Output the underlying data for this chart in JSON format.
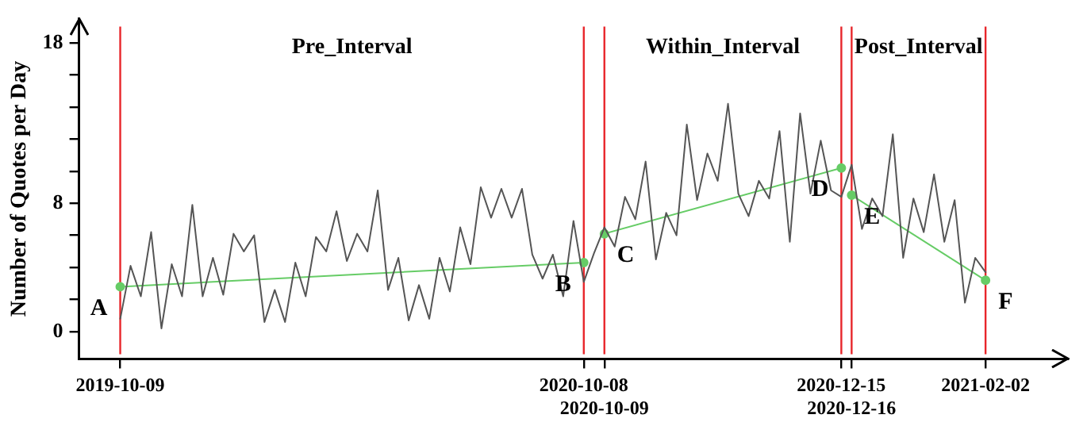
{
  "chart_data": {
    "type": "line",
    "ylabel": "Number of Quotes per Day",
    "categories": [
      null,
      null,
      null,
      null,
      "2019-10-09",
      null,
      null,
      null,
      null,
      null,
      null,
      null,
      null,
      null,
      null,
      null,
      null,
      null,
      null,
      null,
      null,
      null,
      null,
      null,
      null,
      null,
      null,
      null,
      null,
      null,
      null,
      null,
      null,
      null,
      null,
      null,
      null,
      null,
      null,
      null,
      null,
      null,
      null,
      null,
      null,
      null,
      null,
      null,
      null,
      "2020-10-08",
      null,
      "2020-10-09",
      null,
      null,
      null,
      null,
      null,
      null,
      null,
      null,
      null,
      null,
      null,
      null,
      null,
      null,
      null,
      null,
      null,
      null,
      null,
      null,
      null,
      null,
      "2020-12-15",
      "2020-12-16",
      null,
      null,
      null,
      null,
      null,
      null,
      null,
      null,
      null,
      null,
      null,
      null,
      "2021-02-02",
      null,
      null,
      null,
      null,
      null,
      null,
      null,
      null
    ],
    "series": [
      {
        "color": "#555555",
        "values": [
          null,
          null,
          null,
          null,
          0.8,
          4.1,
          2.2,
          6.2,
          0.2,
          4.2,
          2.2,
          7.9,
          2.2,
          4.6,
          2.3,
          6.1,
          5.0,
          6.0,
          0.6,
          2.6,
          0.6,
          4.3,
          2.2,
          5.9,
          5.0,
          7.5,
          4.4,
          6.1,
          5.0,
          8.8,
          2.6,
          4.6,
          0.7,
          2.9,
          0.8,
          4.6,
          2.5,
          6.5,
          4.2,
          9.0,
          7.1,
          8.9,
          7.1,
          8.9,
          4.8,
          3.3,
          4.8,
          2.2,
          6.9,
          3.1,
          4.9,
          6.5,
          5.3,
          8.4,
          7.0,
          10.6,
          4.5,
          7.4,
          6.0,
          12.9,
          8.2,
          11.1,
          9.4,
          14.2,
          8.6,
          7.2,
          9.4,
          8.3,
          12.5,
          5.6,
          13.6,
          8.6,
          11.9,
          8.8,
          8.4,
          10.4,
          6.4,
          8.3,
          7.2,
          12.3,
          4.6,
          8.3,
          6.2,
          9.8,
          5.6,
          8.2,
          1.8,
          4.6,
          3.7,
          null,
          null,
          null,
          null,
          null,
          null,
          null,
          null
        ]
      },
      {
        "type": "line",
        "color": "#66cc66",
        "marker": "circle",
        "values": [
          null,
          null,
          null,
          null,
          2.8,
          null,
          null,
          null,
          null,
          null,
          null,
          null,
          null,
          null,
          null,
          null,
          null,
          null,
          null,
          null,
          null,
          null,
          null,
          null,
          null,
          null,
          null,
          null,
          null,
          null,
          null,
          null,
          null,
          null,
          null,
          null,
          null,
          null,
          null,
          null,
          null,
          null,
          null,
          null,
          null,
          null,
          null,
          null,
          null,
          4.3,
          null,
          null,
          null,
          null,
          null,
          null,
          null,
          null,
          null,
          null,
          null,
          null,
          null,
          null,
          null,
          null,
          null,
          null,
          null,
          null,
          null,
          null,
          null,
          null,
          null,
          null,
          null,
          null,
          null,
          null,
          null,
          null,
          null,
          null,
          null,
          null,
          null,
          null,
          null,
          null,
          null,
          null,
          null,
          null,
          null,
          null,
          null
        ]
      },
      {
        "type": "line",
        "color": "#66cc66",
        "marker": "circle",
        "values": [
          null,
          null,
          null,
          null,
          null,
          null,
          null,
          null,
          null,
          null,
          null,
          null,
          null,
          null,
          null,
          null,
          null,
          null,
          null,
          null,
          null,
          null,
          null,
          null,
          null,
          null,
          null,
          null,
          null,
          null,
          null,
          null,
          null,
          null,
          null,
          null,
          null,
          null,
          null,
          null,
          null,
          null,
          null,
          null,
          null,
          null,
          null,
          null,
          null,
          null,
          null,
          6.1,
          null,
          null,
          null,
          null,
          null,
          null,
          null,
          null,
          null,
          null,
          null,
          null,
          null,
          null,
          null,
          null,
          null,
          null,
          null,
          null,
          null,
          null,
          10.2,
          null,
          null,
          null,
          null,
          null,
          null,
          null,
          null,
          null,
          null,
          null,
          null,
          null,
          null,
          null,
          null,
          null,
          null,
          null,
          null,
          null,
          null
        ]
      },
      {
        "type": "line",
        "color": "#66cc66",
        "marker": "circle",
        "values": [
          null,
          null,
          null,
          null,
          null,
          null,
          null,
          null,
          null,
          null,
          null,
          null,
          null,
          null,
          null,
          null,
          null,
          null,
          null,
          null,
          null,
          null,
          null,
          null,
          null,
          null,
          null,
          null,
          null,
          null,
          null,
          null,
          null,
          null,
          null,
          null,
          null,
          null,
          null,
          null,
          null,
          null,
          null,
          null,
          null,
          null,
          null,
          null,
          null,
          null,
          null,
          null,
          null,
          null,
          null,
          null,
          null,
          null,
          null,
          null,
          null,
          null,
          null,
          null,
          null,
          null,
          null,
          null,
          null,
          null,
          null,
          null,
          null,
          null,
          null,
          8.5,
          null,
          null,
          null,
          null,
          null,
          null,
          null,
          null,
          null,
          null,
          null,
          null,
          3.2,
          null,
          null,
          null,
          null,
          null,
          null,
          null,
          null
        ]
      }
    ],
    "ylim": [
      -1.7,
      19.5
    ],
    "yticks": [
      0,
      {
        "value": 2,
        "label": null
      },
      {
        "value": 4,
        "label": null
      },
      {
        "value": 6,
        "label": null
      },
      8,
      {
        "value": 10,
        "label": null
      },
      {
        "value": 12,
        "label": null
      },
      {
        "value": 14,
        "label": null
      },
      {
        "value": 16,
        "label": null
      },
      18
    ],
    "ref_lines": [
      {
        "axis": "x",
        "value": "2019-10-09",
        "color": "#e8262b"
      },
      {
        "axis": "x",
        "value": "2020-10-08",
        "color": "#e8262b"
      },
      {
        "axis": "x",
        "value": "2020-10-09",
        "color": "#e8262b"
      },
      {
        "axis": "x",
        "value": "2020-12-15",
        "color": "#e8262b"
      },
      {
        "axis": "x",
        "value": "2020-12-16",
        "color": "#e8262b"
      },
      {
        "axis": "x",
        "value": "2021-02-02",
        "color": "#e8262b"
      }
    ],
    "annotations": [
      "Pre_Interval",
      "Within_Interval",
      "Post_Interval",
      {
        "text": "A",
        "x": "2019-10-09",
        "y": 2.8
      },
      {
        "text": "B",
        "x": "2020-10-08",
        "y": 4.3
      },
      {
        "text": "C",
        "x": "2020-10-09",
        "y": 6.1
      },
      {
        "text": "D",
        "x": "2020-12-15",
        "y": 10.2
      },
      {
        "text": "E",
        "x": "2020-12-16",
        "y": 8.5
      },
      {
        "text": "F",
        "x": "2021-02-02",
        "y": 3.2
      }
    ],
    "grid": false,
    "legend": false
  }
}
